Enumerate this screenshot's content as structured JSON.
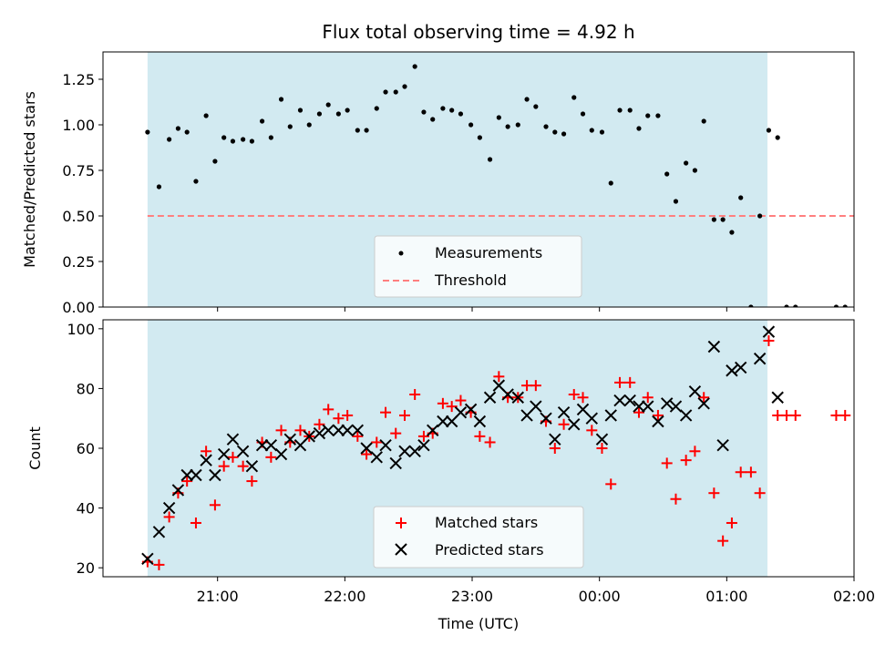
{
  "chart_data": [
    {
      "type": "scatter",
      "title": "Flux total observing time = 4.92 h",
      "xlabel": "",
      "ylabel": "Matched/Predicted stars",
      "ylim": [
        0,
        1.4
      ],
      "yticks": [
        "0.00",
        "0.25",
        "0.50",
        "0.75",
        "1.00",
        "1.25"
      ],
      "xlim": [
        -2.9,
        3.0
      ],
      "shaded_interval": [
        -2.55,
        2.32
      ],
      "legend": {
        "placement": "lower-center",
        "entries": [
          "Measurements",
          "Threshold"
        ]
      },
      "colors": {
        "measurements": "#000000",
        "threshold": "#ff7f7f",
        "shade": "#add8e6"
      },
      "threshold": {
        "name": "Threshold",
        "value": 0.5,
        "x_range": [
          -2.55,
          3.45
        ]
      },
      "series": [
        {
          "name": "Measurements",
          "points": [
            [
              -2.55,
              0.96
            ],
            [
              -2.46,
              0.66
            ],
            [
              -2.38,
              0.92
            ],
            [
              -2.31,
              0.98
            ],
            [
              -2.24,
              0.96
            ],
            [
              -2.17,
              0.69
            ],
            [
              -2.09,
              1.05
            ],
            [
              -2.02,
              0.8
            ],
            [
              -1.95,
              0.93
            ],
            [
              -1.88,
              0.91
            ],
            [
              -1.8,
              0.92
            ],
            [
              -1.73,
              0.91
            ],
            [
              -1.65,
              1.02
            ],
            [
              -1.58,
              0.93
            ],
            [
              -1.5,
              1.14
            ],
            [
              -1.43,
              0.99
            ],
            [
              -1.35,
              1.08
            ],
            [
              -1.28,
              1.0
            ],
            [
              -1.2,
              1.06
            ],
            [
              -1.13,
              1.11
            ],
            [
              -1.05,
              1.06
            ],
            [
              -0.98,
              1.08
            ],
            [
              -0.9,
              0.97
            ],
            [
              -0.83,
              0.97
            ],
            [
              -0.75,
              1.09
            ],
            [
              -0.68,
              1.18
            ],
            [
              -0.6,
              1.18
            ],
            [
              -0.53,
              1.21
            ],
            [
              -0.45,
              1.32
            ],
            [
              -0.38,
              1.07
            ],
            [
              -0.31,
              1.03
            ],
            [
              -0.23,
              1.09
            ],
            [
              -0.16,
              1.08
            ],
            [
              -0.09,
              1.06
            ],
            [
              -0.01,
              1.0
            ],
            [
              0.06,
              0.93
            ],
            [
              0.14,
              0.81
            ],
            [
              0.21,
              1.04
            ],
            [
              0.28,
              0.99
            ],
            [
              0.36,
              1.0
            ],
            [
              0.43,
              1.14
            ],
            [
              0.5,
              1.1
            ],
            [
              0.58,
              0.99
            ],
            [
              0.65,
              0.96
            ],
            [
              0.72,
              0.95
            ],
            [
              0.8,
              1.15
            ],
            [
              0.87,
              1.06
            ],
            [
              0.94,
              0.97
            ],
            [
              1.02,
              0.96
            ],
            [
              1.09,
              0.68
            ],
            [
              1.16,
              1.08
            ],
            [
              1.24,
              1.08
            ],
            [
              1.31,
              0.98
            ],
            [
              1.38,
              1.05
            ],
            [
              1.46,
              1.05
            ],
            [
              1.53,
              0.73
            ],
            [
              1.6,
              0.58
            ],
            [
              1.68,
              0.79
            ],
            [
              1.75,
              0.75
            ],
            [
              1.82,
              1.02
            ],
            [
              1.9,
              0.48
            ],
            [
              1.97,
              0.48
            ],
            [
              2.04,
              0.41
            ],
            [
              2.11,
              0.6
            ],
            [
              2.19,
              0.0
            ],
            [
              2.26,
              0.5
            ],
            [
              2.33,
              0.97
            ],
            [
              2.4,
              0.93
            ],
            [
              2.47,
              0.0
            ],
            [
              2.54,
              0.0
            ],
            [
              2.86,
              0.0
            ],
            [
              2.93,
              0.0
            ]
          ]
        }
      ]
    },
    {
      "type": "scatter",
      "title": "",
      "xlabel": "Time (UTC)",
      "ylabel": "Count",
      "ylim": [
        17,
        103
      ],
      "yticks": [
        "20",
        "40",
        "60",
        "80",
        "100"
      ],
      "xticks": [
        "21:00",
        "22:00",
        "23:00",
        "00:00",
        "01:00",
        "02:00"
      ],
      "xlim": [
        -2.9,
        3.0
      ],
      "shaded_interval": [
        -2.55,
        2.32
      ],
      "legend": {
        "placement": "lower-center",
        "entries": [
          "Matched stars",
          "Predicted stars"
        ]
      },
      "colors": {
        "matched": "#ff0000",
        "predicted": "#000000",
        "shade": "#add8e6"
      },
      "series": [
        {
          "name": "Matched stars",
          "marker": "+",
          "points": [
            [
              -2.55,
              22
            ],
            [
              -2.46,
              21
            ],
            [
              -2.38,
              37
            ],
            [
              -2.31,
              45
            ],
            [
              -2.24,
              49
            ],
            [
              -2.17,
              35
            ],
            [
              -2.09,
              59
            ],
            [
              -2.02,
              41
            ],
            [
              -1.95,
              54
            ],
            [
              -1.88,
              57
            ],
            [
              -1.8,
              54
            ],
            [
              -1.73,
              49
            ],
            [
              -1.65,
              62
            ],
            [
              -1.58,
              57
            ],
            [
              -1.5,
              66
            ],
            [
              -1.43,
              62
            ],
            [
              -1.35,
              66
            ],
            [
              -1.28,
              64
            ],
            [
              -1.2,
              68
            ],
            [
              -1.13,
              73
            ],
            [
              -1.05,
              70
            ],
            [
              -0.98,
              71
            ],
            [
              -0.9,
              64
            ],
            [
              -0.83,
              58
            ],
            [
              -0.75,
              62
            ],
            [
              -0.68,
              72
            ],
            [
              -0.6,
              65
            ],
            [
              -0.53,
              71
            ],
            [
              -0.45,
              78
            ],
            [
              -0.38,
              64
            ],
            [
              -0.31,
              65
            ],
            [
              -0.23,
              75
            ],
            [
              -0.16,
              74
            ],
            [
              -0.09,
              76
            ],
            [
              -0.01,
              72
            ],
            [
              0.06,
              64
            ],
            [
              0.14,
              62
            ],
            [
              0.21,
              84
            ],
            [
              0.28,
              77
            ],
            [
              0.36,
              77
            ],
            [
              0.43,
              81
            ],
            [
              0.5,
              81
            ],
            [
              0.58,
              69
            ],
            [
              0.65,
              60
            ],
            [
              0.72,
              68
            ],
            [
              0.8,
              78
            ],
            [
              0.87,
              77
            ],
            [
              0.94,
              66
            ],
            [
              1.02,
              60
            ],
            [
              1.09,
              48
            ],
            [
              1.16,
              82
            ],
            [
              1.24,
              82
            ],
            [
              1.31,
              72
            ],
            [
              1.38,
              77
            ],
            [
              1.46,
              71
            ],
            [
              1.53,
              55
            ],
            [
              1.6,
              43
            ],
            [
              1.68,
              56
            ],
            [
              1.75,
              59
            ],
            [
              1.82,
              77
            ],
            [
              1.9,
              45
            ],
            [
              1.97,
              29
            ],
            [
              2.04,
              35
            ],
            [
              2.11,
              52
            ],
            [
              2.19,
              52
            ],
            [
              2.26,
              45
            ],
            [
              2.33,
              96
            ],
            [
              2.4,
              71
            ],
            [
              2.47,
              71
            ],
            [
              2.54,
              71
            ],
            [
              2.86,
              71
            ],
            [
              2.93,
              71
            ]
          ]
        },
        {
          "name": "Predicted stars",
          "marker": "x",
          "points": [
            [
              -2.55,
              23
            ],
            [
              -2.46,
              32
            ],
            [
              -2.38,
              40
            ],
            [
              -2.31,
              46
            ],
            [
              -2.24,
              51
            ],
            [
              -2.17,
              51
            ],
            [
              -2.09,
              56
            ],
            [
              -2.02,
              51
            ],
            [
              -1.95,
              58
            ],
            [
              -1.88,
              63
            ],
            [
              -1.8,
              59
            ],
            [
              -1.73,
              54
            ],
            [
              -1.65,
              61
            ],
            [
              -1.58,
              61
            ],
            [
              -1.5,
              58
            ],
            [
              -1.43,
              63
            ],
            [
              -1.35,
              61
            ],
            [
              -1.28,
              64
            ],
            [
              -1.2,
              65
            ],
            [
              -1.13,
              66
            ],
            [
              -1.05,
              66
            ],
            [
              -0.98,
              66
            ],
            [
              -0.9,
              66
            ],
            [
              -0.83,
              60
            ],
            [
              -0.75,
              57
            ],
            [
              -0.68,
              61
            ],
            [
              -0.6,
              55
            ],
            [
              -0.53,
              59
            ],
            [
              -0.45,
              59
            ],
            [
              -0.38,
              61
            ],
            [
              -0.31,
              66
            ],
            [
              -0.23,
              69
            ],
            [
              -0.16,
              69
            ],
            [
              -0.09,
              72
            ],
            [
              -0.01,
              73
            ],
            [
              0.06,
              69
            ],
            [
              0.14,
              77
            ],
            [
              0.21,
              81
            ],
            [
              0.28,
              78
            ],
            [
              0.36,
              77
            ],
            [
              0.43,
              71
            ],
            [
              0.5,
              74
            ],
            [
              0.58,
              70
            ],
            [
              0.65,
              63
            ],
            [
              0.72,
              72
            ],
            [
              0.8,
              68
            ],
            [
              0.87,
              73
            ],
            [
              0.94,
              70
            ],
            [
              1.02,
              63
            ],
            [
              1.09,
              71
            ],
            [
              1.16,
              76
            ],
            [
              1.24,
              76
            ],
            [
              1.31,
              74
            ],
            [
              1.38,
              74
            ],
            [
              1.46,
              69
            ],
            [
              1.53,
              75
            ],
            [
              1.6,
              74
            ],
            [
              1.68,
              71
            ],
            [
              1.75,
              79
            ],
            [
              1.82,
              75
            ],
            [
              1.9,
              94
            ],
            [
              1.97,
              61
            ],
            [
              2.04,
              86
            ],
            [
              2.11,
              87
            ],
            [
              2.26,
              90
            ],
            [
              2.33,
              99
            ],
            [
              2.4,
              77
            ]
          ]
        }
      ]
    }
  ]
}
